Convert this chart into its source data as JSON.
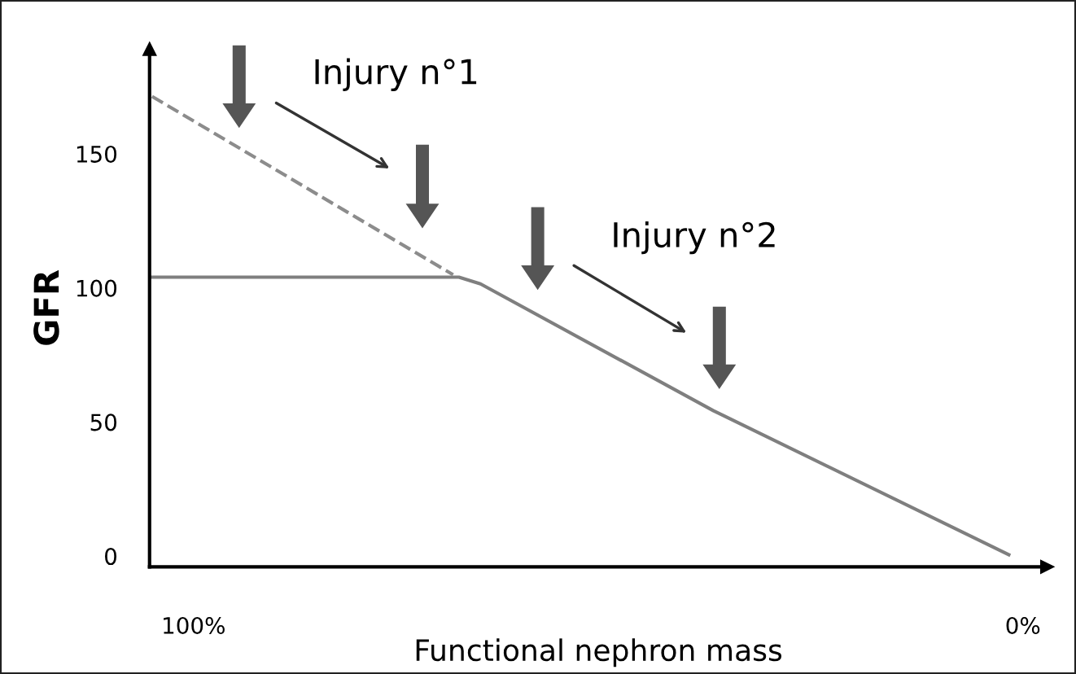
{
  "chart_data": {
    "type": "line",
    "xlabel": "Functional nephron mass",
    "ylabel": "GFR",
    "xlim": [
      105.3,
      -2.9
    ],
    "ylim": [
      -4,
      189
    ],
    "xticks": [
      {
        "value": 100,
        "label": "100%"
      },
      {
        "value": 0,
        "label": "0%"
      }
    ],
    "yticks": [
      0,
      50,
      100,
      150
    ],
    "grid": false,
    "legend": false,
    "marker": "none",
    "series": [
      {
        "color": "#7f7f7f",
        "line_style": "solid",
        "x": [
          105.1,
          68.0,
          65.4,
          37.3,
          1.7
        ],
        "values": [
          104,
          104,
          101.5,
          54.2,
          0.5
        ]
      },
      {
        "color": "#8c8c8c",
        "line_style": "dashed",
        "x": [
          105.0,
          68.7
        ],
        "values": [
          171.4,
          104.9
        ]
      }
    ],
    "annotations": [
      "Injury n°1",
      "Injury n°2"
    ]
  }
}
